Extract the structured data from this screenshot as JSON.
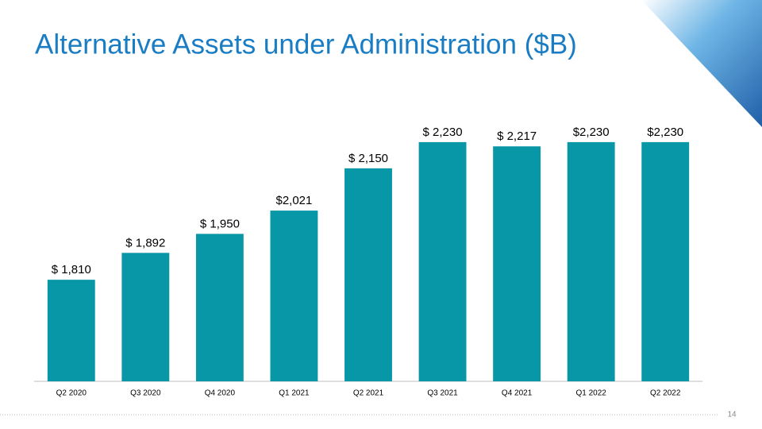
{
  "chart_data": {
    "type": "bar",
    "title": "Alternative Assets under Administration ($B)",
    "categories": [
      "Q2 2020",
      "Q3 2020",
      "Q4 2020",
      "Q1 2021",
      "Q2 2021",
      "Q3 2021",
      "Q4 2021",
      "Q1 2022",
      "Q2 2022"
    ],
    "values": [
      1810,
      1892,
      1950,
      2021,
      2150,
      2230,
      2217,
      2230,
      2230
    ],
    "value_labels": [
      "$ 1,810",
      "$ 1,892",
      "$ 1,950",
      "$2,021",
      "$ 2,150",
      "$ 2,230",
      "$ 2,217",
      "$2,230",
      "$2,230"
    ],
    "color": "#0897a6",
    "ylim": [
      1500,
      2300
    ]
  },
  "page_number": "14"
}
